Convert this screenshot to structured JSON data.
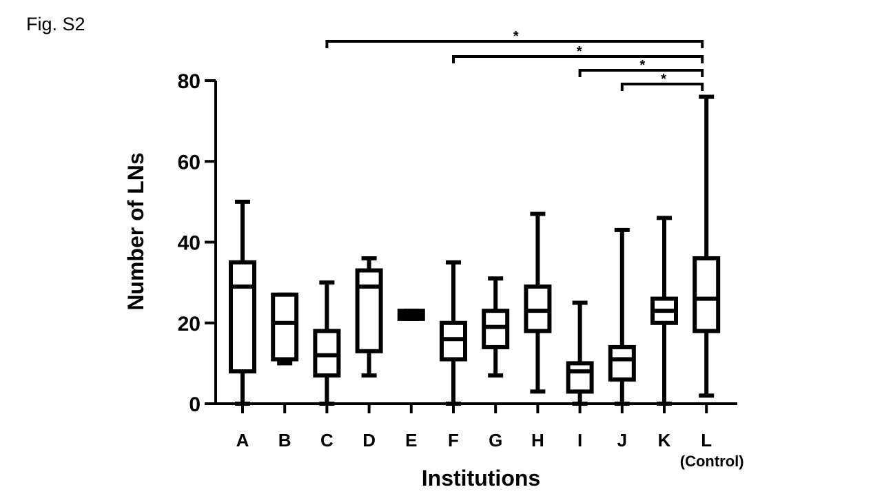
{
  "figure_label": "Fig. S2",
  "chart_data": {
    "type": "box",
    "xlabel": "Institutions",
    "ylabel": "Number of LNs",
    "ylim": [
      0,
      80
    ],
    "yticks": [
      0,
      20,
      40,
      60,
      80
    ],
    "grid": false,
    "categories": [
      "A",
      "B",
      "C",
      "D",
      "E",
      "F",
      "G",
      "H",
      "I",
      "J",
      "K",
      "L"
    ],
    "category_sublabels": {
      "L": "(Control)"
    },
    "boxes": [
      {
        "label": "A",
        "min": 0,
        "q1": 8,
        "median": 29,
        "q3": 35,
        "max": 50
      },
      {
        "label": "B",
        "min": 10,
        "q1": 11,
        "median": 20,
        "q3": 27,
        "max": 27
      },
      {
        "label": "C",
        "min": 0,
        "q1": 7,
        "median": 12,
        "q3": 18,
        "max": 30
      },
      {
        "label": "D",
        "min": 7,
        "q1": 13,
        "median": 29,
        "q3": 33,
        "max": 36
      },
      {
        "label": "E",
        "min": 21,
        "q1": 21,
        "median": 22,
        "q3": 23,
        "max": 23
      },
      {
        "label": "F",
        "min": 0,
        "q1": 11,
        "median": 16,
        "q3": 20,
        "max": 35
      },
      {
        "label": "G",
        "min": 7,
        "q1": 14,
        "median": 19,
        "q3": 23,
        "max": 31
      },
      {
        "label": "H",
        "min": 3,
        "q1": 18,
        "median": 23,
        "q3": 29,
        "max": 47
      },
      {
        "label": "I",
        "min": 0,
        "q1": 3,
        "median": 8,
        "q3": 10,
        "max": 25
      },
      {
        "label": "J",
        "min": 0,
        "q1": 6,
        "median": 11,
        "q3": 14,
        "max": 43
      },
      {
        "label": "K",
        "min": 0,
        "q1": 20,
        "median": 23,
        "q3": 26,
        "max": 46
      },
      {
        "label": "L",
        "min": 2,
        "q1": 18,
        "median": 26,
        "q3": 36,
        "max": 76
      }
    ],
    "significance": [
      {
        "from": "C",
        "to": "L",
        "label": "*"
      },
      {
        "from": "F",
        "to": "L",
        "label": "*"
      },
      {
        "from": "I",
        "to": "L",
        "label": "*"
      },
      {
        "from": "J",
        "to": "L",
        "label": "*"
      }
    ]
  }
}
